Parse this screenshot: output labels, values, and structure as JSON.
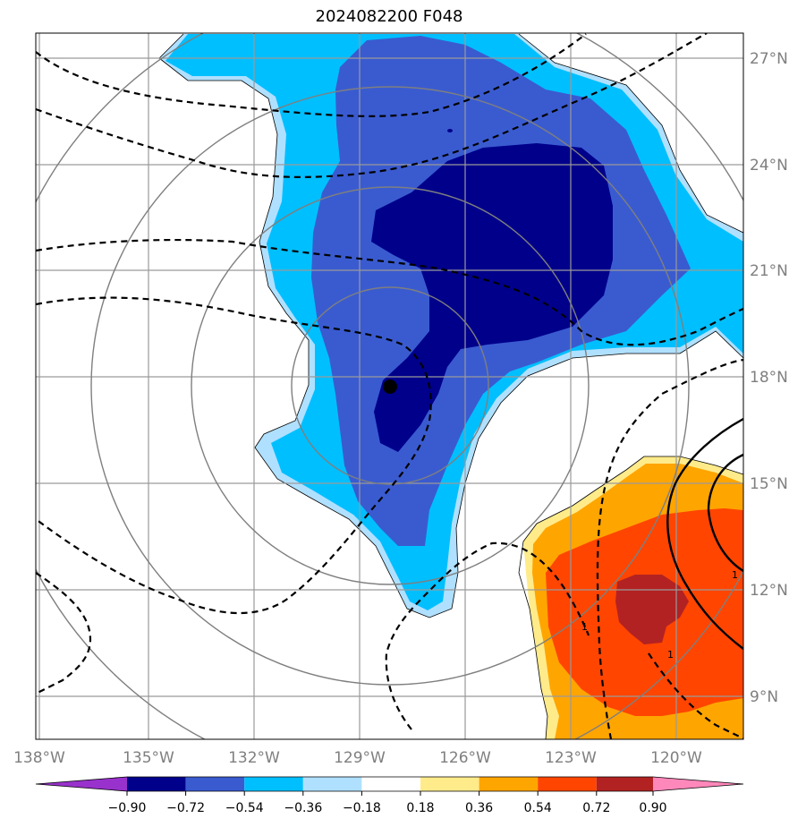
{
  "title": "2024082200 F048",
  "axes": {
    "lon_ticks": [
      "138°W",
      "135°W",
      "132°W",
      "129°W",
      "126°W",
      "123°W",
      "120°W"
    ],
    "lat_ticks": [
      "9°N",
      "12°N",
      "15°N",
      "18°N",
      "21°N",
      "24°N",
      "27°N"
    ],
    "lon_range": [
      -138.1,
      -118.0
    ],
    "lat_range": [
      7.9,
      27.7
    ],
    "grid": true
  },
  "colorbar": {
    "tick_labels": [
      "−0.90",
      "−0.72",
      "−0.54",
      "−0.36",
      "−0.18",
      "0.18",
      "0.36",
      "0.54",
      "0.72",
      "0.90"
    ],
    "levels": [
      -0.9,
      -0.72,
      -0.54,
      -0.36,
      -0.18,
      0.18,
      0.36,
      0.54,
      0.72,
      0.9
    ],
    "colors": [
      "#9932cc",
      "#00008b",
      "#3a5bd0",
      "#00bfff",
      "#b0e0ff",
      "#ffffff",
      "#ffeb8a",
      "#ffa500",
      "#ff4500",
      "#b22222",
      "#ff88bb"
    ],
    "extend": "both"
  },
  "map": {
    "storm_center": {
      "lon": "128.2°W",
      "lat": "17.7°N"
    },
    "range_rings": 4,
    "contour_labels": [
      "1",
      "1",
      "1"
    ]
  }
}
